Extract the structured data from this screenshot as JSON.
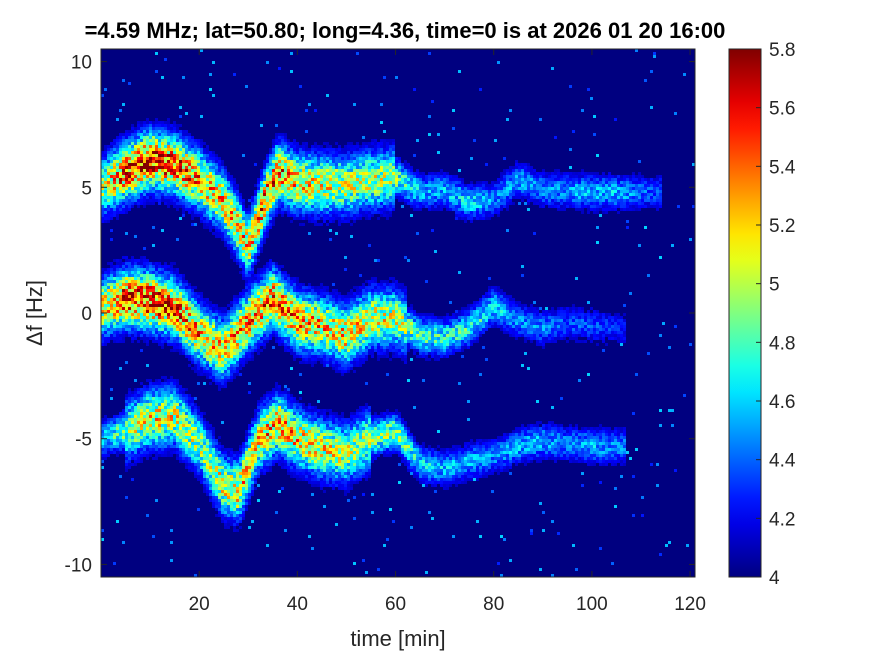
{
  "chart_data": {
    "type": "heatmap",
    "title": "=4.59 MHz;  lat=50.80; long=4.36, time=0 is at 2026 01 20 16:00",
    "xlabel": "time [min]",
    "ylabel": "Δf [Hz]",
    "xlim": [
      0,
      121
    ],
    "ylim": [
      -10.5,
      10.5
    ],
    "xticks": [
      20,
      40,
      60,
      80,
      100,
      120
    ],
    "xtick_labels": [
      "20",
      "40",
      "60",
      "80",
      "100",
      "120"
    ],
    "yticks": [
      10,
      5,
      0,
      -5,
      -10
    ],
    "ytick_labels": [
      "10",
      "5",
      "0",
      "-5",
      "-10"
    ],
    "colorbar": {
      "range": [
        4,
        5.8
      ],
      "ticks": [
        4,
        4.2,
        4.4,
        4.6,
        4.8,
        5,
        5.2,
        5.4,
        5.6,
        5.8
      ],
      "tick_labels": [
        "4",
        "4.2",
        "4.4",
        "4.6",
        "4.8",
        "5",
        "5.2",
        "5.4",
        "5.6",
        "5.8"
      ],
      "colormap": "jet"
    },
    "background_value": 4.0,
    "series": [
      {
        "t": [
          0,
          5,
          10,
          15,
          20,
          25,
          28,
          30,
          33,
          36,
          40,
          45,
          50,
          55,
          60,
          65,
          70,
          75,
          80,
          85,
          90,
          100,
          105,
          112
        ],
        "f": [
          5.0,
          5.6,
          6.1,
          5.9,
          5.3,
          4.4,
          3.4,
          2.6,
          4.3,
          5.6,
          5.2,
          5.1,
          5.1,
          5.3,
          5.4,
          4.8,
          4.9,
          4.4,
          4.5,
          5.3,
          4.9,
          4.8,
          4.8,
          4.8
        ],
        "peak": [
          5.0,
          5.6,
          5.7,
          5.6,
          5.4,
          5.3,
          5.3,
          5.3,
          5.5,
          5.5,
          5.3,
          5.2,
          5.1,
          5.1,
          5.0,
          4.6,
          4.6,
          4.7,
          4.5,
          4.6,
          4.5,
          4.6,
          4.6,
          4.4
        ]
      },
      {
        "t": [
          0,
          5,
          10,
          15,
          20,
          25,
          30,
          35,
          40,
          45,
          50,
          55,
          60,
          65,
          70,
          75,
          80,
          85,
          90,
          95,
          100,
          105
        ],
        "f": [
          0.2,
          0.6,
          0.5,
          0.2,
          -0.8,
          -1.5,
          -0.3,
          0.6,
          -0.3,
          -0.5,
          -0.9,
          -0.2,
          -0.2,
          -0.9,
          -1.0,
          -0.6,
          0.3,
          -0.3,
          -0.6,
          -0.4,
          -0.5,
          -0.6
        ],
        "peak": [
          5.2,
          5.6,
          5.7,
          5.6,
          5.4,
          5.3,
          5.4,
          5.5,
          5.4,
          5.3,
          5.3,
          5.2,
          5.1,
          4.9,
          4.8,
          4.8,
          4.7,
          4.5,
          4.5,
          4.4,
          4.4,
          4.3
        ]
      },
      {
        "t": [
          0,
          5,
          10,
          15,
          20,
          25,
          28,
          32,
          36,
          40,
          45,
          50,
          55,
          60,
          65,
          70,
          75,
          80,
          85,
          90,
          95,
          100,
          105
        ],
        "f": [
          -5.0,
          -4.7,
          -4.2,
          -4.1,
          -5.2,
          -6.9,
          -7.1,
          -5.1,
          -4.4,
          -5.0,
          -5.4,
          -5.6,
          -5.0,
          -4.7,
          -6.0,
          -6.2,
          -5.9,
          -5.7,
          -5.3,
          -5.1,
          -5.2,
          -5.3,
          -5.3
        ],
        "peak": [
          4.6,
          5.0,
          5.2,
          5.2,
          5.0,
          5.2,
          5.3,
          5.3,
          5.4,
          5.3,
          5.2,
          5.1,
          5.0,
          5.0,
          4.7,
          4.6,
          4.6,
          4.5,
          4.6,
          4.6,
          4.5,
          4.6,
          4.5
        ]
      }
    ],
    "grid": false
  }
}
